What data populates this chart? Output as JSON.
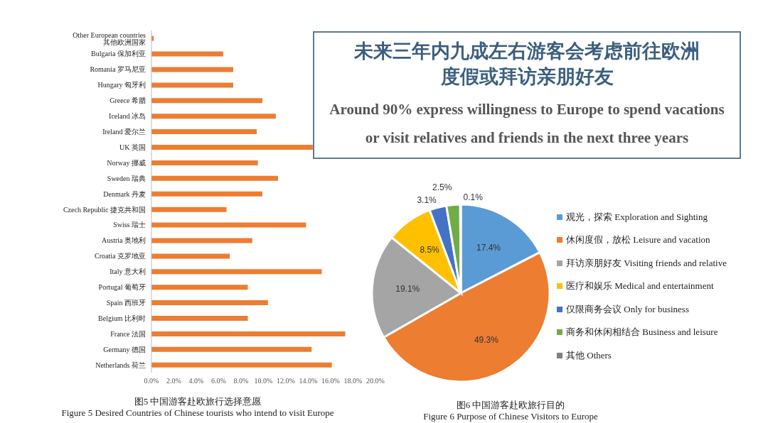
{
  "chart_data": [
    {
      "type": "bar",
      "orientation": "horizontal",
      "title": "图5 中国游客赴欧旅行选择意愿",
      "subtitle": "Figure 5 Desired Countries of Chinese tourists who intend to visit Europe",
      "categories": [
        "Other European countries 其他欧洲国家",
        "Bulgaria 保加利亚",
        "Romania 罗马尼亚",
        "Hungary 匈牙利",
        "Greece 希腊",
        "Iceland 冰岛",
        "Ireland 爱尔兰",
        "UK 英国",
        "Norway 挪威",
        "Sweden 瑞典",
        "Denmark 丹麦",
        "Czech Republic 捷克共和国",
        "Swiss 瑞士",
        "Austria 奥地利",
        "Croatia 克罗地亚",
        "Italy 意大利",
        "Portugal 葡萄牙",
        "Spain 西班牙",
        "Belgium 比利时",
        "France 法国",
        "Germany 德国",
        "Netherlands 荷兰"
      ],
      "values": [
        0.2,
        6.4,
        7.3,
        7.3,
        9.9,
        11.1,
        9.4,
        14.4,
        9.5,
        11.3,
        9.9,
        6.7,
        13.8,
        9.0,
        7.0,
        15.2,
        8.6,
        10.4,
        8.6,
        17.3,
        14.3,
        16.1
      ],
      "color": "#ed7d31",
      "xlim": [
        0,
        20
      ],
      "xticks": [
        {
          "value": 0,
          "label": "0.0%"
        },
        {
          "value": 2,
          "label": "2.0%"
        },
        {
          "value": 4,
          "label": "4.0%"
        },
        {
          "value": 6,
          "label": "6.0%"
        },
        {
          "value": 8,
          "label": "8.0%"
        },
        {
          "value": 10,
          "label": "10.0%"
        },
        {
          "value": 12,
          "label": "12.0%"
        },
        {
          "value": 14,
          "label": "14.0%"
        },
        {
          "value": 16,
          "label": "16.0%"
        },
        {
          "value": 18,
          "label": "18.0%"
        },
        {
          "value": 20,
          "label": "20.0%"
        }
      ],
      "grid": false,
      "legend": false
    },
    {
      "type": "other",
      "title": "未来三年内九成左右游客会考虑前往欧洲度假或拜访亲朋好友",
      "subtitle": "Around 90% express willingness to Europe to spend vacations or visit relatives and friends in the next three years"
    },
    {
      "type": "pie",
      "title": "图6 中国游客赴欧旅行目的",
      "subtitle": "Figure 6 Purpose of Chinese Visitors to Europe",
      "categories": [
        "观光，探索 Exploration and Sighting",
        "休闲度假，放松 Leisure and vacation",
        "拜访亲朋好友 Visiting friends and relative",
        "医疗和娱乐 Medical and entertainment",
        "仅限商务会议 Only for business",
        "商务和休闲相结合 Business and leisure",
        "其他 Others"
      ],
      "values": [
        17.4,
        49.3,
        19.1,
        8.5,
        3.1,
        2.5,
        0.1
      ],
      "colors": [
        "#5b9bd5",
        "#ed7d31",
        "#a5a5a5",
        "#ffc000",
        "#4472c4",
        "#70ad47",
        "#7f7f7f"
      ],
      "value_labels": [
        "17.4%",
        "49.3%",
        "19.1%",
        "8.5%",
        "3.1%",
        "2.5%",
        "0.1%"
      ],
      "legend": "right"
    }
  ]
}
